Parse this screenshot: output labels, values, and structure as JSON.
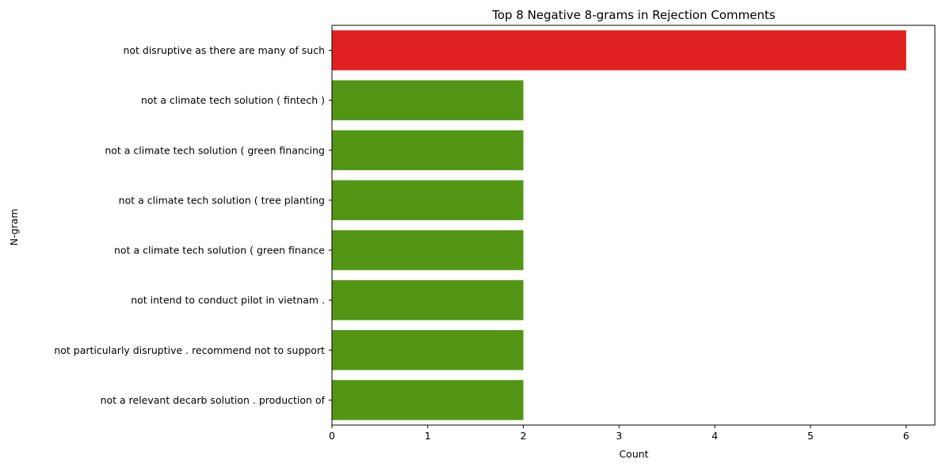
{
  "chart_data": {
    "type": "bar",
    "orientation": "horizontal",
    "title": "Top 8 Negative 8-grams in Rejection Comments",
    "xlabel": "Count",
    "ylabel": "N-gram",
    "categories": [
      "not disruptive as there are many of such",
      "not a climate tech solution ( fintech )",
      "not a climate tech solution ( green financing",
      "not a climate tech solution ( tree planting",
      "not a climate tech solution ( green finance",
      "not intend to conduct pilot in vietnam .",
      "not particularly disruptive . recommend not to support",
      "not a relevant decarb solution . production of"
    ],
    "values": [
      6,
      2,
      2,
      2,
      2,
      2,
      2,
      2
    ],
    "colors": [
      "#e02020",
      "#539514",
      "#539514",
      "#539514",
      "#539514",
      "#539514",
      "#539514",
      "#539514"
    ],
    "xlim": [
      0,
      6.3
    ],
    "xticks": [
      0,
      1,
      2,
      3,
      4,
      5,
      6
    ],
    "grid": false,
    "legend": "none"
  }
}
